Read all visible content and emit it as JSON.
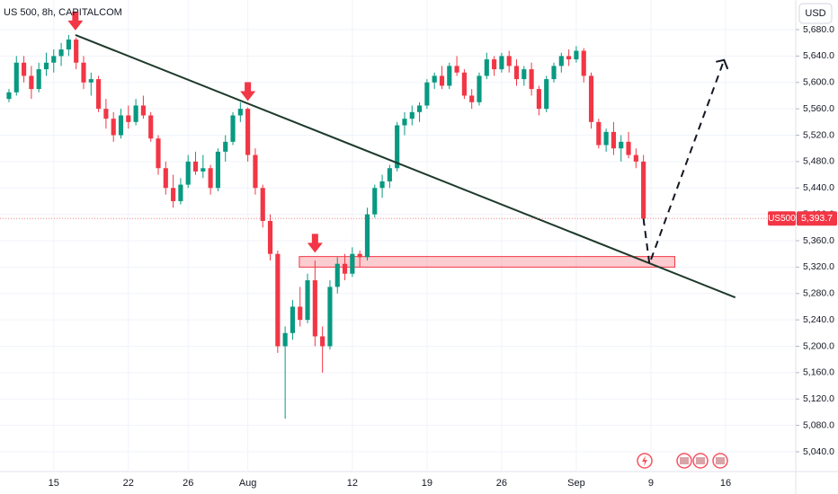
{
  "chart_data": {
    "type": "candlestick",
    "title": "US 500, 8h, CAPITALCOM",
    "currency": "USD",
    "symbol": "US500",
    "last_price_label": "5,393.7",
    "up_color": "#089981",
    "down_color": "#f23645",
    "ohlc": [
      [
        5575,
        5590,
        5570,
        5585
      ],
      [
        5585,
        5640,
        5580,
        5630
      ],
      [
        5630,
        5640,
        5600,
        5610
      ],
      [
        5610,
        5625,
        5575,
        5590
      ],
      [
        5590,
        5630,
        5585,
        5620
      ],
      [
        5620,
        5645,
        5610,
        5630
      ],
      [
        5630,
        5650,
        5615,
        5640
      ],
      [
        5640,
        5660,
        5625,
        5650
      ],
      [
        5650,
        5672,
        5640,
        5665
      ],
      [
        5665,
        5668,
        5620,
        5630
      ],
      [
        5630,
        5640,
        5590,
        5600
      ],
      [
        5600,
        5615,
        5580,
        5605
      ],
      [
        5605,
        5610,
        5555,
        5560
      ],
      [
        5560,
        5575,
        5530,
        5545
      ],
      [
        5545,
        5555,
        5510,
        5520
      ],
      [
        5520,
        5560,
        5515,
        5550
      ],
      [
        5550,
        5565,
        5530,
        5540
      ],
      [
        5540,
        5575,
        5535,
        5565
      ],
      [
        5565,
        5580,
        5545,
        5550
      ],
      [
        5550,
        5555,
        5510,
        5515
      ],
      [
        5515,
        5520,
        5460,
        5470
      ],
      [
        5470,
        5480,
        5430,
        5440
      ],
      [
        5440,
        5460,
        5410,
        5420
      ],
      [
        5420,
        5455,
        5415,
        5445
      ],
      [
        5445,
        5490,
        5440,
        5480
      ],
      [
        5480,
        5495,
        5460,
        5465
      ],
      [
        5465,
        5490,
        5455,
        5470
      ],
      [
        5470,
        5475,
        5430,
        5440
      ],
      [
        5440,
        5500,
        5435,
        5495
      ],
      [
        5495,
        5520,
        5480,
        5510
      ],
      [
        5510,
        5555,
        5505,
        5550
      ],
      [
        5550,
        5570,
        5540,
        5560
      ],
      [
        5560,
        5562,
        5480,
        5490
      ],
      [
        5490,
        5500,
        5430,
        5440
      ],
      [
        5440,
        5445,
        5380,
        5390
      ],
      [
        5390,
        5400,
        5330,
        5340
      ],
      [
        5340,
        5345,
        5190,
        5200
      ],
      [
        5200,
        5230,
        5090,
        5220
      ],
      [
        5220,
        5270,
        5210,
        5260
      ],
      [
        5260,
        5290,
        5230,
        5240
      ],
      [
        5240,
        5310,
        5235,
        5300
      ],
      [
        5300,
        5330,
        5200,
        5215
      ],
      [
        5215,
        5230,
        5160,
        5200
      ],
      [
        5200,
        5300,
        5195,
        5290
      ],
      [
        5290,
        5335,
        5280,
        5325
      ],
      [
        5325,
        5340,
        5300,
        5310
      ],
      [
        5310,
        5350,
        5305,
        5340
      ],
      [
        5340,
        5345,
        5320,
        5335
      ],
      [
        5335,
        5410,
        5330,
        5400
      ],
      [
        5400,
        5445,
        5395,
        5440
      ],
      [
        5440,
        5460,
        5425,
        5450
      ],
      [
        5450,
        5475,
        5440,
        5470
      ],
      [
        5470,
        5540,
        5465,
        5535
      ],
      [
        5535,
        5555,
        5520,
        5545
      ],
      [
        5545,
        5565,
        5535,
        5555
      ],
      [
        5555,
        5570,
        5540,
        5565
      ],
      [
        5565,
        5605,
        5560,
        5600
      ],
      [
        5600,
        5615,
        5590,
        5610
      ],
      [
        5610,
        5625,
        5590,
        5595
      ],
      [
        5595,
        5630,
        5590,
        5625
      ],
      [
        5625,
        5640,
        5610,
        5615
      ],
      [
        5615,
        5620,
        5575,
        5580
      ],
      [
        5580,
        5590,
        5560,
        5570
      ],
      [
        5570,
        5615,
        5565,
        5610
      ],
      [
        5610,
        5645,
        5605,
        5635
      ],
      [
        5635,
        5640,
        5610,
        5620
      ],
      [
        5620,
        5645,
        5615,
        5640
      ],
      [
        5640,
        5648,
        5615,
        5625
      ],
      [
        5625,
        5635,
        5595,
        5605
      ],
      [
        5605,
        5625,
        5595,
        5620
      ],
      [
        5620,
        5630,
        5580,
        5590
      ],
      [
        5590,
        5595,
        5550,
        5560
      ],
      [
        5560,
        5610,
        5555,
        5605
      ],
      [
        5605,
        5630,
        5600,
        5625
      ],
      [
        5625,
        5645,
        5615,
        5640
      ],
      [
        5640,
        5650,
        5625,
        5635
      ],
      [
        5635,
        5655,
        5630,
        5648
      ],
      [
        5648,
        5652,
        5600,
        5610
      ],
      [
        5610,
        5615,
        5530,
        5540
      ],
      [
        5540,
        5545,
        5500,
        5505
      ],
      [
        5505,
        5530,
        5495,
        5525
      ],
      [
        5525,
        5540,
        5490,
        5500
      ],
      [
        5500,
        5520,
        5480,
        5510
      ],
      [
        5510,
        5525,
        5485,
        5490
      ],
      [
        5490,
        5500,
        5470,
        5480
      ],
      [
        5480,
        5490,
        5385,
        5393.7
      ]
    ],
    "xlim": [
      -1.2,
      105.4
    ],
    "ylim": [
      5010,
      5725
    ],
    "xticks": [
      {
        "value": 6,
        "label": "15"
      },
      {
        "value": 16,
        "label": "22"
      },
      {
        "value": 24,
        "label": "26"
      },
      {
        "value": 32,
        "label": "Aug"
      },
      {
        "value": 46,
        "label": "12"
      },
      {
        "value": 56,
        "label": "19"
      },
      {
        "value": 66,
        "label": "26"
      },
      {
        "value": 76,
        "label": "Sep"
      },
      {
        "value": 86,
        "label": "9"
      },
      {
        "value": 96,
        "label": "16"
      }
    ],
    "yticks": [
      {
        "value": 5040,
        "label": "5,040.0"
      },
      {
        "value": 5080,
        "label": "5,080.0"
      },
      {
        "value": 5120,
        "label": "5,120.0"
      },
      {
        "value": 5160,
        "label": "5,160.0"
      },
      {
        "value": 5200,
        "label": "5,200.0"
      },
      {
        "value": 5240,
        "label": "5,240.0"
      },
      {
        "value": 5280,
        "label": "5,280.0"
      },
      {
        "value": 5320,
        "label": "5,320.0"
      },
      {
        "value": 5360,
        "label": "5,360.0"
      },
      {
        "value": 5400,
        "label": "5,400.0"
      },
      {
        "value": 5440,
        "label": "5,440.0"
      },
      {
        "value": 5480,
        "label": "5,480.0"
      },
      {
        "value": 5520,
        "label": "5,520.0"
      },
      {
        "value": 5560,
        "label": "5,560.0"
      },
      {
        "value": 5600,
        "label": "5,600.0"
      },
      {
        "value": 5640,
        "label": "5,640.0"
      },
      {
        "value": 5680,
        "label": "5,680.0"
      }
    ],
    "trendline": {
      "x": [
        8.9,
        97.3
      ],
      "y": [
        5672,
        5274
      ]
    },
    "projection": {
      "x": [
        85,
        85.8,
        95.8
      ],
      "y": [
        5393.7,
        5325,
        5634
      ]
    },
    "zone": {
      "x": [
        38.9,
        89.2
      ],
      "y": [
        5320,
        5336
      ]
    },
    "signals": {
      "x": [
        8.9,
        32,
        41
      ],
      "y": [
        5672,
        5565,
        5335
      ]
    }
  }
}
